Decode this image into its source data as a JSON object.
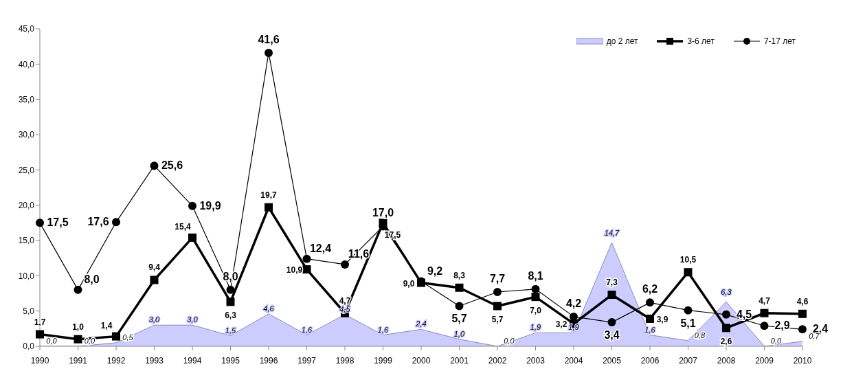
{
  "chart_data": {
    "type": "line",
    "categories": [
      "1990",
      "1991",
      "1992",
      "1993",
      "1994",
      "1995",
      "1996",
      "1997",
      "1998",
      "1999",
      "2000",
      "2001",
      "2002",
      "2003",
      "2004",
      "2005",
      "2006",
      "2007",
      "2008",
      "2009",
      "2010"
    ],
    "series": [
      {
        "name": "до 2 лет",
        "type": "area",
        "color": "#ccccff",
        "values": [
          0.0,
          0.0,
          0.5,
          3.0,
          3.0,
          1.5,
          4.6,
          1.6,
          4.5,
          1.6,
          2.4,
          1.0,
          0.0,
          1.9,
          1.9,
          14.7,
          1.6,
          0.8,
          6.3,
          0.0,
          0.7
        ],
        "value_labels": [
          "0,0",
          "0,0",
          "0,5",
          "3,0",
          "3,0",
          "1,5",
          "4,6",
          "1,6",
          "4,5",
          "1,6",
          "2,4",
          "1,0",
          "0,0",
          "1,9",
          "1,9",
          "14,7",
          "1,6",
          "0,8",
          "6,3",
          "0,0",
          "0,7"
        ]
      },
      {
        "name": "3-6 лет",
        "type": "line",
        "color": "#000000",
        "marker": "square",
        "values": [
          1.7,
          1.0,
          1.4,
          9.4,
          15.4,
          6.3,
          19.7,
          10.9,
          4.7,
          17.5,
          9.0,
          8.3,
          5.7,
          7.0,
          3.2,
          7.3,
          3.9,
          10.5,
          2.6,
          4.7,
          4.6
        ],
        "value_labels": [
          "1,7",
          "1,0",
          "1,4",
          "9,4",
          "15,4",
          "6,3",
          "19,7",
          "10,9",
          "4,7",
          "17,5",
          "9,0",
          "8,3",
          "5,7",
          "7,0",
          "3,2",
          "7,3",
          "3,9",
          "10,5",
          "2,6",
          "4,7",
          "4,6"
        ]
      },
      {
        "name": "7-17 лет",
        "type": "line",
        "color": "#000000",
        "marker": "circle",
        "values": [
          17.5,
          8.0,
          17.6,
          25.6,
          19.9,
          8.0,
          41.6,
          12.4,
          11.6,
          17.0,
          9.2,
          5.7,
          7.7,
          8.1,
          4.2,
          3.4,
          6.2,
          5.1,
          4.5,
          2.9,
          2.4
        ],
        "value_labels": [
          "17,5",
          "8,0",
          "17,6",
          "25,6",
          "19,9",
          "8,0",
          "41,6",
          "12,4",
          "11,6",
          "17,0",
          "9,2",
          "5,7",
          "7,7",
          "8,1",
          "4,2",
          "3,4",
          "6,2",
          "5,1",
          "4,5",
          "2,9",
          "2,4"
        ]
      }
    ],
    "ylim": [
      0,
      45
    ],
    "yticks": [
      {
        "value": 0,
        "label": "0,0"
      },
      {
        "value": 5,
        "label": "5,0"
      },
      {
        "value": 10,
        "label": "10,0"
      },
      {
        "value": 15,
        "label": "15,0"
      },
      {
        "value": 20,
        "label": "20,0"
      },
      {
        "value": 25,
        "label": "25,0"
      },
      {
        "value": 30,
        "label": "30,0"
      },
      {
        "value": 35,
        "label": "35,0"
      },
      {
        "value": 40,
        "label": "40,0"
      },
      {
        "value": 45,
        "label": "45,0"
      }
    ],
    "grid": false,
    "legend": "top right"
  }
}
